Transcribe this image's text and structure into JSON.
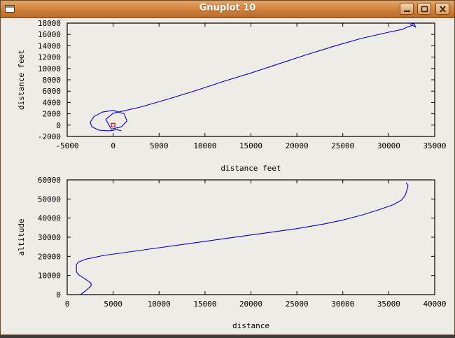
{
  "window": {
    "title": "Gnuplot 10",
    "controls": [
      "minimize",
      "maximize",
      "close"
    ]
  },
  "colors": {
    "series": "#0000cc",
    "marker": "#cc0000",
    "axis": "#000000",
    "background": "#efebe7"
  },
  "chart_data": [
    {
      "type": "line",
      "title": "",
      "xlabel": "distance feet",
      "ylabel": "distance feet",
      "xlim": [
        -5000,
        35000
      ],
      "ylim": [
        -2000,
        18000
      ],
      "xticks": [
        -5000,
        0,
        5000,
        10000,
        15000,
        20000,
        25000,
        30000,
        35000
      ],
      "yticks": [
        -2000,
        0,
        2000,
        4000,
        6000,
        8000,
        10000,
        12000,
        14000,
        16000,
        18000
      ],
      "grid": false,
      "series": [
        {
          "x": [
            900,
            400,
            -400,
            -1500,
            -2300,
            -2500,
            -2100,
            -1200,
            0,
            1200,
            1500,
            900,
            -200,
            -800,
            0,
            3000,
            6000,
            9000,
            12000,
            15000,
            18000,
            21000,
            24000,
            27000,
            30000,
            31500,
            32000,
            32600,
            32900,
            32800,
            32300
          ],
          "y": [
            -1000,
            -800,
            -1000,
            -900,
            -300,
            500,
            1500,
            2300,
            2600,
            2000,
            700,
            -300,
            -700,
            1000,
            2100,
            3200,
            4600,
            6100,
            7700,
            9200,
            10800,
            12400,
            13900,
            15300,
            16400,
            16900,
            17300,
            17600,
            17300,
            17900,
            17800
          ]
        },
        {
          "type": "marker",
          "x": [
            0
          ],
          "y": [
            0
          ]
        }
      ]
    },
    {
      "type": "line",
      "title": "",
      "xlabel": "distance",
      "ylabel": "altitude",
      "xlim": [
        0,
        40000
      ],
      "ylim": [
        0,
        60000
      ],
      "xticks": [
        0,
        5000,
        10000,
        15000,
        20000,
        25000,
        30000,
        35000,
        40000
      ],
      "yticks": [
        0,
        10000,
        20000,
        30000,
        40000,
        50000,
        60000
      ],
      "grid": false,
      "series": [
        {
          "x": [
            1500,
            2000,
            2600,
            2600,
            2000,
            1200,
            1000,
            1000,
            1200,
            2000,
            4000,
            7000,
            10000,
            13000,
            16000,
            19000,
            22000,
            25000,
            28000,
            30000,
            32000,
            34000,
            35500,
            36400,
            36800,
            37000,
            37100,
            36900
          ],
          "y": [
            200,
            2000,
            4500,
            6000,
            8000,
            10500,
            12000,
            15500,
            17000,
            18500,
            20500,
            22500,
            24500,
            26500,
            28500,
            30500,
            32500,
            34500,
            37000,
            39000,
            41500,
            44500,
            47000,
            49500,
            52000,
            55000,
            57000,
            58500
          ]
        }
      ]
    }
  ]
}
